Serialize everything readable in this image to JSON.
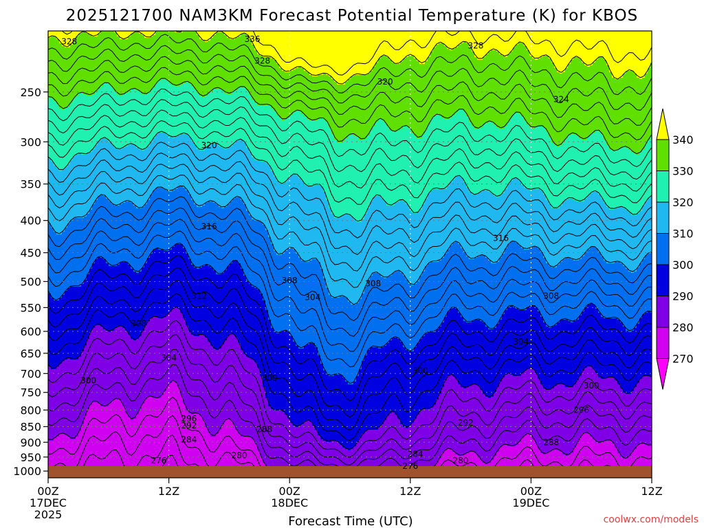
{
  "chart_data": {
    "type": "contour",
    "title": "2025121700 NAM3KM Forecast Potential Temperature (K) for KBOS",
    "xlabel": "Forecast Time (UTC)",
    "ylabel": "",
    "credit": "coolwx.com/models",
    "x_ticks": [
      {
        "top": "00Z",
        "line2": "17DEC",
        "line3": "2025"
      },
      {
        "top": "12Z",
        "line2": "",
        "line3": ""
      },
      {
        "top": "00Z",
        "line2": "18DEC",
        "line3": ""
      },
      {
        "top": "12Z",
        "line2": "",
        "line3": ""
      },
      {
        "top": "00Z",
        "line2": "19DEC",
        "line3": ""
      },
      {
        "top": "12Z",
        "line2": "",
        "line3": ""
      }
    ],
    "x_range_hours": [
      0,
      60
    ],
    "y_axis": "pressure (hPa)",
    "y_range": [
      200,
      1025
    ],
    "y_ticks": [
      250,
      300,
      350,
      400,
      450,
      500,
      550,
      600,
      650,
      700,
      750,
      800,
      850,
      900,
      950,
      1000
    ],
    "colorbar": {
      "levels": [
        270,
        280,
        290,
        300,
        310,
        320,
        330,
        340
      ],
      "colors": [
        "#ff00ff",
        "#d000f0",
        "#7f00e6",
        "#0000e0",
        "#0070f0",
        "#20b8f0",
        "#20f0b0",
        "#60e000",
        "#ffff00"
      ]
    },
    "contour_labels": [
      {
        "text": "328",
        "t": 2.1,
        "p": 208
      },
      {
        "text": "336",
        "t": 20.3,
        "p": 206
      },
      {
        "text": "328",
        "t": 21.3,
        "p": 223
      },
      {
        "text": "328",
        "t": 42.5,
        "p": 211
      },
      {
        "text": "320",
        "t": 33.5,
        "p": 241
      },
      {
        "text": "324",
        "t": 51.0,
        "p": 257
      },
      {
        "text": "320",
        "t": 16.0,
        "p": 304
      },
      {
        "text": "316",
        "t": 16.0,
        "p": 409
      },
      {
        "text": "316",
        "t": 45.0,
        "p": 427
      },
      {
        "text": "312",
        "t": 15.0,
        "p": 527
      },
      {
        "text": "308",
        "t": 24.0,
        "p": 498
      },
      {
        "text": "308",
        "t": 32.3,
        "p": 504
      },
      {
        "text": "304",
        "t": 26.3,
        "p": 530
      },
      {
        "text": "308",
        "t": 9.0,
        "p": 583
      },
      {
        "text": "308",
        "t": 50.0,
        "p": 527
      },
      {
        "text": "304",
        "t": 47.0,
        "p": 623
      },
      {
        "text": "304",
        "t": 12.0,
        "p": 661
      },
      {
        "text": "300",
        "t": 4.0,
        "p": 718
      },
      {
        "text": "300",
        "t": 22.0,
        "p": 712
      },
      {
        "text": "300",
        "t": 37.0,
        "p": 693
      },
      {
        "text": "300",
        "t": 54.0,
        "p": 732
      },
      {
        "text": "296",
        "t": 14.0,
        "p": 826
      },
      {
        "text": "296",
        "t": 53.0,
        "p": 800
      },
      {
        "text": "292",
        "t": 14.0,
        "p": 847
      },
      {
        "text": "292",
        "t": 41.5,
        "p": 838
      },
      {
        "text": "288",
        "t": 21.5,
        "p": 858
      },
      {
        "text": "288",
        "t": 50.0,
        "p": 900
      },
      {
        "text": "284",
        "t": 14.0,
        "p": 892
      },
      {
        "text": "284",
        "t": 36.5,
        "p": 940
      },
      {
        "text": "280",
        "t": 19.0,
        "p": 945
      },
      {
        "text": "280",
        "t": 41.0,
        "p": 962
      },
      {
        "text": "276",
        "t": 11.0,
        "p": 962
      },
      {
        "text": "276",
        "t": 36.0,
        "p": 982
      }
    ]
  }
}
